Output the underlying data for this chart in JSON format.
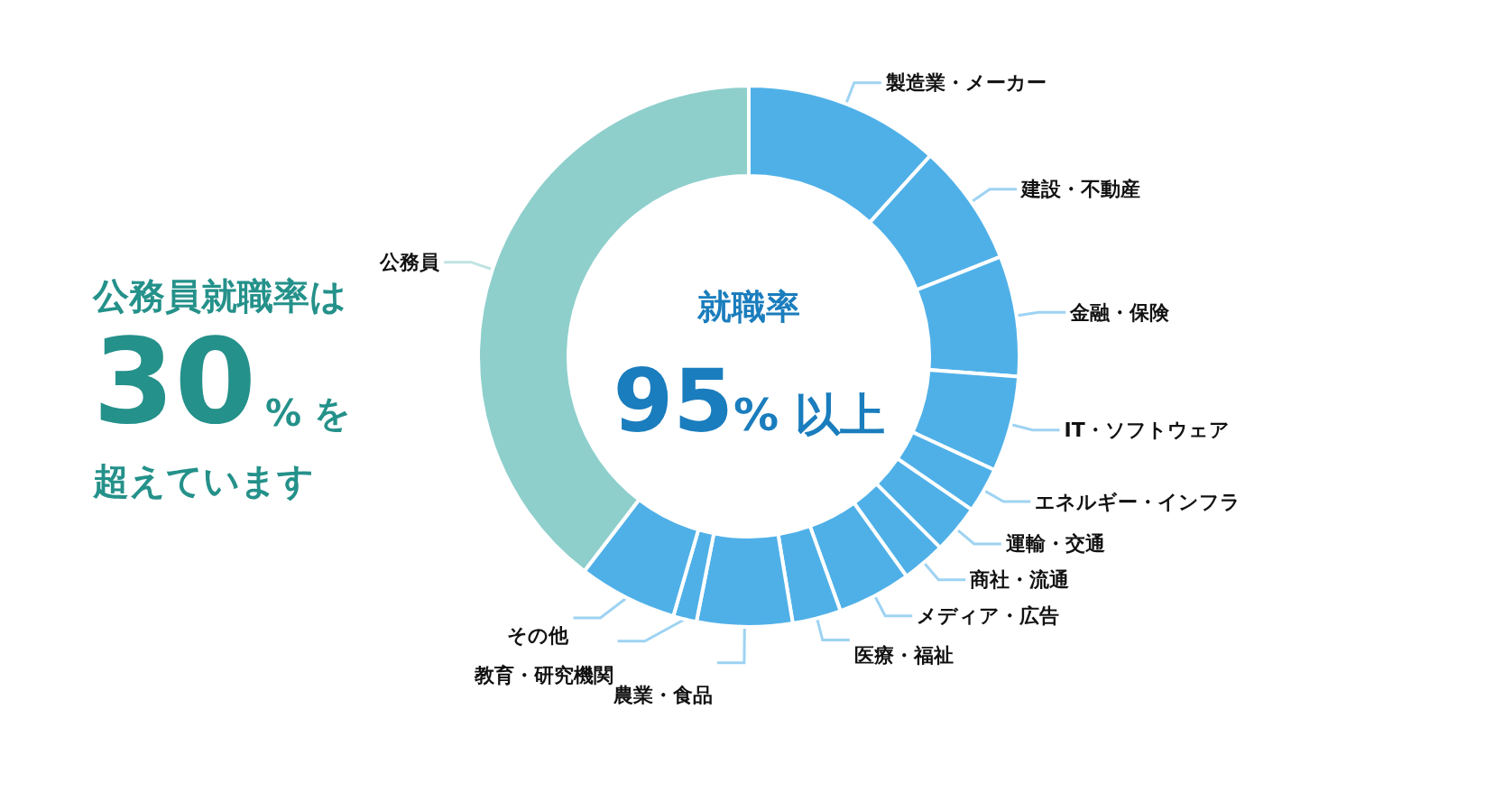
{
  "chart_data": {
    "type": "donut",
    "title": "就職率",
    "subtitle": "95% 以上",
    "annotations": [
      "公務員就職率は",
      "30% を",
      "超えています"
    ],
    "categories": [
      "製造業・メーカー",
      "建設・不動産",
      "金融・保険",
      "IT・ソフトウェア",
      "エネルギー・インフラ",
      "運輸・交通",
      "商社・流通",
      "メディア・広告",
      "医療・福祉",
      "農業・食品",
      "教育・研究機関",
      "その他",
      "公務員"
    ],
    "values": [
      11.7,
      7.3,
      7.2,
      5.7,
      2.7,
      2.9,
      2.6,
      4.4,
      2.9,
      5.7,
      1.4,
      5.9,
      39.6
    ],
    "colors": [
      "#4fb0e8",
      "#4fb0e8",
      "#4fb0e8",
      "#4fb0e8",
      "#4fb0e8",
      "#4fb0e8",
      "#4fb0e8",
      "#4fb0e8",
      "#4fb0e8",
      "#4fb0e8",
      "#4fb0e8",
      "#4fb0e8",
      "#8ecfcc"
    ],
    "legend": false
  }
}
